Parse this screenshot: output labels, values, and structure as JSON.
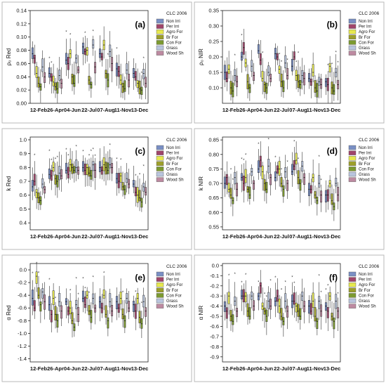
{
  "figure": {
    "legend_title": "CLC 2006",
    "classes": [
      "Non Irri",
      "Per Irri",
      "Agro For",
      "Br For",
      "Con For",
      "Grass",
      "Wood Sh"
    ],
    "class_colors": [
      "#7a8fc4",
      "#a0456a",
      "#e6e84f",
      "#9d9f2a",
      "#7c9a30",
      "#b9c5de",
      "#bd8aa1"
    ],
    "dates": [
      "12-Feb",
      "26-Apr",
      "04-Jun",
      "22-Jul",
      "07-Aug",
      "11-Nov",
      "13-Dec"
    ]
  },
  "chart_data": [
    {
      "type": "box",
      "panel_label": "(a)",
      "ylabel": "ρ₀ Red",
      "ylim": [
        0.0,
        0.14
      ],
      "yticks": [
        "0.00",
        "0.02",
        "0.04",
        "0.06",
        "0.08",
        "0.10",
        "0.12",
        "0.14"
      ],
      "categories": [
        "12-Feb",
        "26-Apr",
        "04-Jun",
        "22-Jul",
        "07-Aug",
        "11-Nov",
        "13-Dec"
      ],
      "series_medians": [
        {
          "name": "Non Irri",
          "values": [
            0.075,
            0.045,
            0.065,
            0.085,
            0.075,
            0.052,
            0.045
          ]
        },
        {
          "name": "Per Irri",
          "values": [
            0.068,
            0.04,
            0.06,
            0.078,
            0.07,
            0.048,
            0.04
          ]
        },
        {
          "name": "Agro For",
          "values": [
            0.045,
            0.032,
            0.075,
            0.08,
            0.088,
            0.035,
            0.03
          ]
        },
        {
          "name": "Br For",
          "values": [
            0.03,
            0.025,
            0.04,
            0.035,
            0.045,
            0.025,
            0.022
          ]
        },
        {
          "name": "Con For",
          "values": [
            0.025,
            0.022,
            0.03,
            0.028,
            0.035,
            0.022,
            0.02
          ]
        },
        {
          "name": "Grass",
          "values": [
            0.055,
            0.042,
            0.068,
            0.088,
            0.078,
            0.05,
            0.045
          ]
        },
        {
          "name": "Wood Sh",
          "values": [
            0.04,
            0.03,
            0.05,
            0.055,
            0.06,
            0.035,
            0.03
          ]
        }
      ]
    },
    {
      "type": "box",
      "panel_label": "(b)",
      "ylabel": "ρ₀ NIR",
      "ylim": [
        0.05,
        0.35
      ],
      "yticks": [
        "0.10",
        "0.15",
        "0.20",
        "0.25",
        "0.30",
        "0.35"
      ],
      "categories": [
        "12-Feb",
        "26-Apr",
        "04-Jun",
        "22-Jul",
        "07-Aug",
        "11-Nov",
        "13-Dec"
      ],
      "series_medians": [
        {
          "name": "Non Irri",
          "values": [
            0.15,
            0.2,
            0.22,
            0.21,
            0.17,
            0.13,
            0.12
          ]
        },
        {
          "name": "Per Irri",
          "values": [
            0.13,
            0.23,
            0.19,
            0.2,
            0.2,
            0.12,
            0.11
          ]
        },
        {
          "name": "Agro For",
          "values": [
            0.16,
            0.18,
            0.13,
            0.16,
            0.14,
            0.15,
            0.17
          ]
        },
        {
          "name": "Br For",
          "values": [
            0.1,
            0.12,
            0.11,
            0.12,
            0.12,
            0.1,
            0.1
          ]
        },
        {
          "name": "Con For",
          "values": [
            0.09,
            0.1,
            0.1,
            0.1,
            0.11,
            0.09,
            0.09
          ]
        },
        {
          "name": "Grass",
          "values": [
            0.14,
            0.17,
            0.15,
            0.18,
            0.14,
            0.12,
            0.15
          ]
        },
        {
          "name": "Wood Sh",
          "values": [
            0.12,
            0.14,
            0.13,
            0.14,
            0.13,
            0.11,
            0.11
          ]
        }
      ]
    },
    {
      "type": "box",
      "panel_label": "(c)",
      "ylabel": "k Red",
      "ylim": [
        0.35,
        1.02
      ],
      "yticks": [
        "0.4",
        "0.5",
        "0.6",
        "0.7",
        "0.8",
        "0.9",
        "1.0"
      ],
      "categories": [
        "12-Feb",
        "26-Apr",
        "04-Jun",
        "22-Jul",
        "07-Aug",
        "11-Nov",
        "13-Dec"
      ],
      "series_medians": [
        {
          "name": "Non Irri",
          "values": [
            0.66,
            0.75,
            0.78,
            0.8,
            0.8,
            0.72,
            0.68
          ]
        },
        {
          "name": "Per Irri",
          "values": [
            0.7,
            0.74,
            0.75,
            0.78,
            0.78,
            0.7,
            0.62
          ]
        },
        {
          "name": "Agro For",
          "values": [
            0.62,
            0.8,
            0.82,
            0.8,
            0.82,
            0.74,
            0.6
          ]
        },
        {
          "name": "Br For",
          "values": [
            0.58,
            0.72,
            0.8,
            0.76,
            0.8,
            0.66,
            0.58
          ]
        },
        {
          "name": "Con For",
          "values": [
            0.56,
            0.7,
            0.78,
            0.74,
            0.78,
            0.64,
            0.55
          ]
        },
        {
          "name": "Grass",
          "values": [
            0.68,
            0.76,
            0.8,
            0.82,
            0.82,
            0.72,
            0.66
          ]
        },
        {
          "name": "Wood Sh",
          "values": [
            0.64,
            0.74,
            0.78,
            0.78,
            0.8,
            0.68,
            0.62
          ]
        }
      ]
    },
    {
      "type": "box",
      "panel_label": "(d)",
      "ylabel": "k NIR",
      "ylim": [
        0.54,
        0.86
      ],
      "yticks": [
        "0.55",
        "0.60",
        "0.65",
        "0.70",
        "0.75",
        "0.80",
        "0.85"
      ],
      "categories": [
        "12-Feb",
        "26-Apr",
        "04-Jun",
        "22-Jul",
        "07-Aug",
        "11-Nov",
        "13-Dec"
      ],
      "series_medians": [
        {
          "name": "Non Irri",
          "values": [
            0.7,
            0.72,
            0.75,
            0.72,
            0.74,
            0.68,
            0.66
          ]
        },
        {
          "name": "Per Irri",
          "values": [
            0.72,
            0.7,
            0.78,
            0.75,
            0.76,
            0.68,
            0.66
          ]
        },
        {
          "name": "Agro For",
          "values": [
            0.68,
            0.72,
            0.74,
            0.75,
            0.78,
            0.72,
            0.7
          ]
        },
        {
          "name": "Br For",
          "values": [
            0.66,
            0.68,
            0.7,
            0.7,
            0.72,
            0.66,
            0.64
          ]
        },
        {
          "name": "Con For",
          "values": [
            0.64,
            0.66,
            0.68,
            0.68,
            0.7,
            0.64,
            0.62
          ]
        },
        {
          "name": "Grass",
          "values": [
            0.72,
            0.74,
            0.76,
            0.74,
            0.76,
            0.7,
            0.7
          ]
        },
        {
          "name": "Wood Sh",
          "values": [
            0.68,
            0.7,
            0.72,
            0.7,
            0.72,
            0.66,
            0.66
          ]
        }
      ]
    },
    {
      "type": "box",
      "panel_label": "(e)",
      "ylabel": "α Red",
      "ylim": [
        -1.45,
        0.1
      ],
      "yticks": [
        "0.0",
        "-0.2",
        "-0.4",
        "-0.6",
        "-0.8",
        "-1.0",
        "-1.2",
        "-1.4"
      ],
      "categories": [
        "12-Feb",
        "26-Apr",
        "04-Jun",
        "22-Jul",
        "07-Aug",
        "11-Nov",
        "13-Dec"
      ],
      "series_medians": [
        {
          "name": "Non Irri",
          "values": [
            -0.45,
            -0.55,
            -0.5,
            -0.45,
            -0.5,
            -0.5,
            -0.55
          ]
        },
        {
          "name": "Per Irri",
          "values": [
            -0.6,
            -0.7,
            -0.65,
            -0.55,
            -0.6,
            -0.6,
            -0.65
          ]
        },
        {
          "name": "Agro For",
          "values": [
            -0.1,
            -0.45,
            -0.6,
            -0.4,
            -0.4,
            -0.45,
            -0.45
          ]
        },
        {
          "name": "Br For",
          "values": [
            -0.4,
            -0.7,
            -0.8,
            -0.65,
            -0.7,
            -0.7,
            -0.75
          ]
        },
        {
          "name": "Con For",
          "values": [
            -0.55,
            -0.8,
            -0.9,
            -0.75,
            -0.8,
            -0.8,
            -0.85
          ]
        },
        {
          "name": "Grass",
          "values": [
            -0.35,
            -0.5,
            -0.55,
            -0.45,
            -0.5,
            -0.45,
            -0.5
          ]
        },
        {
          "name": "Wood Sh",
          "values": [
            -0.5,
            -0.65,
            -0.7,
            -0.6,
            -0.65,
            -0.6,
            -0.65
          ]
        }
      ]
    },
    {
      "type": "box",
      "panel_label": "(f)",
      "ylabel": "α NIR",
      "ylim": [
        -0.95,
        0.02
      ],
      "yticks": [
        "0.0",
        "-0.1",
        "-0.2",
        "-0.3",
        "-0.4",
        "-0.5",
        "-0.6",
        "-0.7",
        "-0.8",
        "-0.9"
      ],
      "categories": [
        "12-Feb",
        "26-Apr",
        "04-Jun",
        "22-Jul",
        "07-Aug",
        "11-Nov",
        "13-Dec"
      ],
      "series_medians": [
        {
          "name": "Non Irri",
          "values": [
            -0.4,
            -0.3,
            -0.3,
            -0.35,
            -0.35,
            -0.4,
            -0.4
          ]
        },
        {
          "name": "Per Irri",
          "values": [
            -0.45,
            -0.3,
            -0.2,
            -0.3,
            -0.35,
            -0.45,
            -0.45
          ]
        },
        {
          "name": "Agro For",
          "values": [
            -0.3,
            -0.3,
            -0.4,
            -0.4,
            -0.4,
            -0.35,
            -0.3
          ]
        },
        {
          "name": "Br For",
          "values": [
            -0.5,
            -0.45,
            -0.45,
            -0.5,
            -0.45,
            -0.5,
            -0.5
          ]
        },
        {
          "name": "Con For",
          "values": [
            -0.55,
            -0.5,
            -0.5,
            -0.55,
            -0.5,
            -0.55,
            -0.55
          ]
        },
        {
          "name": "Grass",
          "values": [
            -0.35,
            -0.3,
            -0.35,
            -0.35,
            -0.3,
            -0.35,
            -0.35
          ]
        },
        {
          "name": "Wood Sh",
          "values": [
            -0.45,
            -0.4,
            -0.4,
            -0.45,
            -0.4,
            -0.45,
            -0.45
          ]
        }
      ]
    }
  ]
}
